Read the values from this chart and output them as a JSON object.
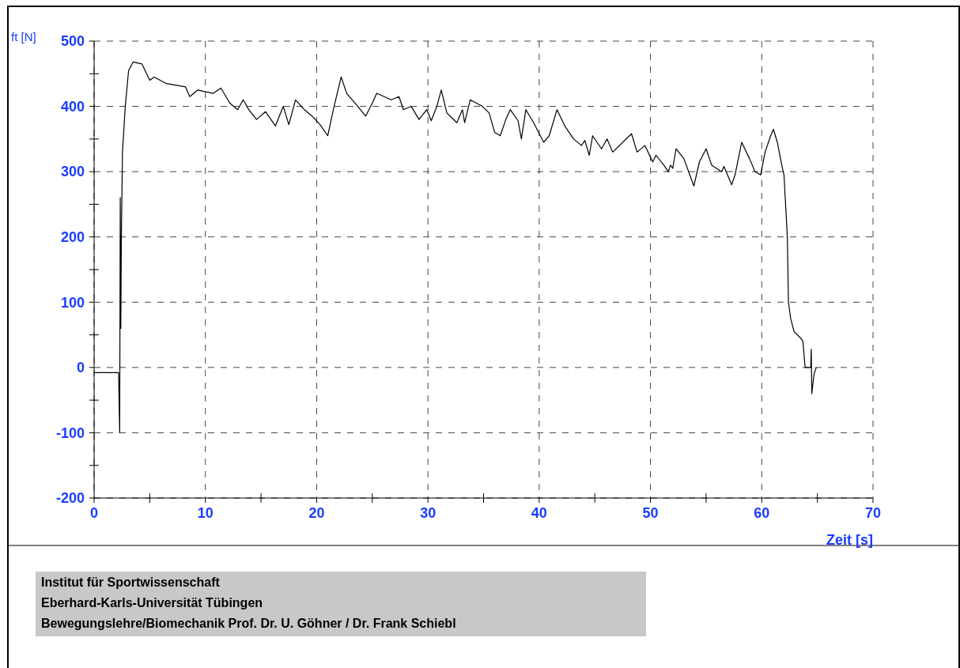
{
  "chart_data": {
    "type": "line",
    "xlabel": "Zeit [s]",
    "ylabel": "ft [N]",
    "xlim": [
      0,
      70
    ],
    "ylim": [
      -200,
      500
    ],
    "xticks": [
      0,
      {
        "value": 5,
        "label": null
      },
      10,
      {
        "value": 15,
        "label": null
      },
      20,
      {
        "value": 25,
        "label": null
      },
      30,
      {
        "value": 35,
        "label": null
      },
      40,
      {
        "value": 45,
        "label": null
      },
      50,
      {
        "value": 55,
        "label": null
      },
      60,
      {
        "value": 65,
        "label": null
      },
      70
    ],
    "yticks": [
      -200,
      {
        "value": -150,
        "label": null
      },
      -100,
      {
        "value": -50,
        "label": null
      },
      0,
      {
        "value": 50,
        "label": null
      },
      100,
      {
        "value": 150,
        "label": null
      },
      200,
      {
        "value": 250,
        "label": null
      },
      300,
      {
        "value": 350,
        "label": null
      },
      400,
      {
        "value": 450,
        "label": null
      },
      500
    ],
    "grid": true,
    "marker": "none",
    "line_style": "solid",
    "annotations": [
      "Institut für Sportwissenschaft",
      "Eberhard-Karls-Universität Tübingen",
      "Bewegungslehre/Biomechanik Prof. Dr. U. Göhner / Dr. Frank Schiebl"
    ],
    "series": [
      {
        "color": "#000000",
        "x": [
          0,
          2.2,
          2.3,
          2.35,
          2.4,
          2.45,
          2.55,
          2.8,
          3.1,
          3.5,
          4.3,
          5.0,
          5.4,
          6.5,
          8.2,
          8.6,
          9.3,
          10.7,
          11.4,
          12.2,
          12.9,
          13.4,
          13.9,
          14.6,
          15.4,
          16.3,
          17.0,
          17.5,
          18.1,
          18.9,
          19.6,
          20.3,
          21.0,
          21.5,
          22.2,
          22.7,
          23.7,
          24.4,
          25.0,
          25.4,
          26.7,
          27.4,
          27.8,
          28.5,
          29.2,
          29.9,
          30.3,
          30.8,
          31.2,
          31.7,
          32.6,
          33.1,
          33.3,
          33.8,
          34.9,
          35.5,
          36.0,
          36.5,
          37.0,
          37.4,
          38.1,
          38.4,
          38.8,
          39.5,
          40.4,
          40.9,
          41.6,
          42.3,
          43.1,
          43.8,
          44.1,
          44.5,
          44.8,
          45.6,
          46.1,
          46.6,
          48.3,
          48.8,
          49.5,
          50.2,
          50.5,
          51.2,
          51.6,
          51.8,
          52.0,
          52.3,
          53.0,
          53.9,
          54.4,
          55.0,
          55.5,
          56.4,
          56.6,
          57.3,
          57.6,
          58.2,
          58.9,
          59.4,
          59.9,
          60.3,
          60.8,
          61.05,
          61.4,
          61.8,
          62.0,
          62.3,
          62.4,
          62.6,
          62.9,
          63.5,
          63.7,
          63.9,
          64.4,
          64.45,
          64.5,
          64.7,
          64.9
        ],
        "values": [
          -8,
          -8,
          -100,
          260,
          60,
          200,
          330,
          400,
          455,
          468,
          465,
          440,
          445,
          435,
          430,
          415,
          425,
          420,
          428,
          405,
          395,
          410,
          395,
          380,
          392,
          370,
          400,
          372,
          410,
          395,
          385,
          372,
          355,
          395,
          445,
          420,
          400,
          385,
          405,
          420,
          410,
          415,
          395,
          400,
          380,
          395,
          378,
          400,
          425,
          390,
          375,
          395,
          375,
          410,
          400,
          390,
          360,
          355,
          380,
          395,
          378,
          350,
          395,
          375,
          345,
          355,
          395,
          370,
          350,
          340,
          348,
          325,
          355,
          335,
          350,
          330,
          358,
          330,
          340,
          315,
          325,
          310,
          300,
          310,
          305,
          335,
          320,
          278,
          315,
          335,
          310,
          300,
          308,
          280,
          295,
          345,
          320,
          300,
          295,
          330,
          355,
          365,
          345,
          310,
          295,
          200,
          100,
          75,
          55,
          45,
          40,
          0,
          0,
          28,
          -40,
          -10,
          0
        ]
      }
    ]
  }
}
